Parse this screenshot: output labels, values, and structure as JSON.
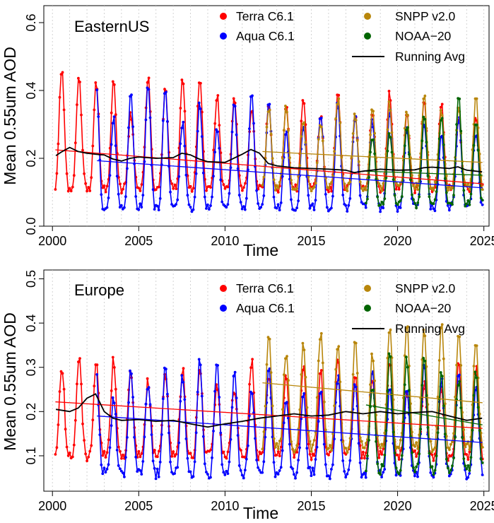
{
  "chart_data": [
    {
      "type": "line",
      "region_label": "EasternUS",
      "xlabel": "Time",
      "ylabel": "Mean 0.55um AOD",
      "xlim": [
        1999.5,
        2025.3
      ],
      "ylim": [
        0.0,
        0.65
      ],
      "xticks": [
        2000,
        2005,
        2010,
        2015,
        2020,
        2025
      ],
      "yticks": [
        0.0,
        0.2,
        0.4,
        0.6
      ],
      "grid": "vertical dotted lines yearly",
      "legend_position": "top-right",
      "legend": [
        {
          "label": "Terra C6.1",
          "color": "#ff0000",
          "marker": "dot"
        },
        {
          "label": "Aqua C6.1",
          "color": "#0000ff",
          "marker": "dot"
        },
        {
          "label": "SNPP v2.0",
          "color": "#b8860b",
          "marker": "dot"
        },
        {
          "label": "NOAA−20",
          "color": "#006400",
          "marker": "dot"
        },
        {
          "label": "Running Avg",
          "color": "#000000",
          "marker": "line"
        }
      ],
      "series": [
        {
          "name": "Terra C6.1",
          "color": "#ff0000",
          "start": 2000.17,
          "end": 2024.92,
          "base": 0.11,
          "amp": 0.3,
          "amp_trend": -0.25
        },
        {
          "name": "Aqua C6.1",
          "color": "#0000ff",
          "start": 2002.58,
          "end": 2024.92,
          "base": 0.055,
          "amp": 0.32,
          "amp_trend": -0.3
        },
        {
          "name": "SNPP v2.0",
          "color": "#b8860b",
          "start": 2012.17,
          "end": 2024.92,
          "base": 0.115,
          "amp": 0.23,
          "amp_trend": 0.0
        },
        {
          "name": "NOAA−20",
          "color": "#006400",
          "start": 2018.17,
          "end": 2024.92,
          "base": 0.065,
          "amp": 0.22,
          "amp_trend": 0.2
        }
      ],
      "trends": [
        {
          "name": "Terra C6.1",
          "color": "#ff0000",
          "x": [
            2000.17,
            2024.92
          ],
          "y": [
            0.225,
            0.125
          ]
        },
        {
          "name": "Aqua C6.1",
          "color": "#0000ff",
          "x": [
            2002.58,
            2024.92
          ],
          "y": [
            0.193,
            0.113
          ]
        },
        {
          "name": "SNPP v2.0",
          "color": "#b8860b",
          "x": [
            2012.17,
            2024.92
          ],
          "y": [
            0.22,
            0.188
          ]
        },
        {
          "name": "NOAA−20",
          "color": "#006400",
          "x": [
            2018.17,
            2024.92
          ],
          "y": [
            0.162,
            0.15
          ]
        }
      ],
      "running_avg": {
        "x": [
          2000.2,
          2000.5,
          2001.0,
          2001.5,
          2002.0,
          2002.5,
          2003.0,
          2003.5,
          2004.0,
          2004.5,
          2005.0,
          2006.0,
          2007.0,
          2007.5,
          2008.0,
          2008.5,
          2009.0,
          2010.0,
          2011.0,
          2011.5,
          2012.0,
          2012.5,
          2013.0,
          2014.0,
          2015.0,
          2016.0,
          2017.0,
          2017.5,
          2018.0,
          2018.5,
          2019.0,
          2020.0,
          2021.0,
          2021.5,
          2022.0,
          2023.0,
          2023.5,
          2024.0,
          2024.9
        ],
        "y": [
          0.208,
          0.218,
          0.232,
          0.22,
          0.215,
          0.212,
          0.21,
          0.198,
          0.192,
          0.2,
          0.204,
          0.2,
          0.202,
          0.215,
          0.21,
          0.198,
          0.19,
          0.188,
          0.212,
          0.226,
          0.215,
          0.185,
          0.178,
          0.172,
          0.17,
          0.168,
          0.165,
          0.158,
          0.162,
          0.165,
          0.168,
          0.165,
          0.166,
          0.172,
          0.174,
          0.17,
          0.175,
          0.165,
          0.16
        ]
      }
    },
    {
      "type": "line",
      "region_label": "Europe",
      "xlabel": "Time",
      "ylabel": "Mean 0.55um AOD",
      "xlim": [
        1999.5,
        2025.3
      ],
      "ylim": [
        0.02,
        0.52
      ],
      "xticks": [
        2000,
        2005,
        2010,
        2015,
        2020,
        2025
      ],
      "yticks": [
        0.1,
        0.2,
        0.3,
        0.4,
        0.5
      ],
      "grid": "vertical dotted lines yearly",
      "legend_position": "top-right",
      "legend": [
        {
          "label": "Terra C6.1",
          "color": "#ff0000",
          "marker": "dot"
        },
        {
          "label": "Aqua C6.1",
          "color": "#0000ff",
          "marker": "dot"
        },
        {
          "label": "SNPP v2.0",
          "color": "#b8860b",
          "marker": "dot"
        },
        {
          "label": "NOAA−20",
          "color": "#006400",
          "marker": "dot"
        },
        {
          "label": "Running Avg",
          "color": "#000000",
          "marker": "line"
        }
      ],
      "series": [
        {
          "name": "Terra C6.1",
          "color": "#ff0000",
          "start": 2000.17,
          "end": 2024.92,
          "base": 0.1,
          "amp": 0.2,
          "amp_trend": -0.1
        },
        {
          "name": "Aqua C6.1",
          "color": "#0000ff",
          "start": 2002.58,
          "end": 2024.92,
          "base": 0.06,
          "amp": 0.22,
          "amp_trend": -0.1
        },
        {
          "name": "SNPP v2.0",
          "color": "#b8860b",
          "start": 2012.17,
          "end": 2024.92,
          "base": 0.12,
          "amp": 0.23,
          "amp_trend": 0.05
        },
        {
          "name": "NOAA−20",
          "color": "#006400",
          "start": 2018.17,
          "end": 2024.92,
          "base": 0.07,
          "amp": 0.2,
          "amp_trend": 0.1
        }
      ],
      "trends": [
        {
          "name": "Terra C6.1",
          "color": "#ff0000",
          "x": [
            2000.17,
            2024.92
          ],
          "y": [
            0.222,
            0.162
          ]
        },
        {
          "name": "Aqua C6.1",
          "color": "#0000ff",
          "x": [
            2002.58,
            2024.92
          ],
          "y": [
            0.19,
            0.13
          ]
        },
        {
          "name": "SNPP v2.0",
          "color": "#b8860b",
          "x": [
            2012.17,
            2024.92
          ],
          "y": [
            0.265,
            0.22
          ]
        },
        {
          "name": "NOAA−20",
          "color": "#006400",
          "x": [
            2018.17,
            2024.92
          ],
          "y": [
            0.215,
            0.17
          ]
        }
      ],
      "running_avg": {
        "x": [
          2000.2,
          2001.0,
          2001.5,
          2002.0,
          2002.5,
          2003.0,
          2003.5,
          2004.0,
          2005.0,
          2006.0,
          2007.0,
          2008.0,
          2009.0,
          2010.0,
          2011.0,
          2012.0,
          2013.0,
          2014.0,
          2015.0,
          2016.0,
          2017.0,
          2018.0,
          2019.0,
          2020.0,
          2021.0,
          2022.0,
          2023.0,
          2024.0,
          2024.9
        ],
        "y": [
          0.205,
          0.2,
          0.208,
          0.23,
          0.24,
          0.2,
          0.185,
          0.18,
          0.182,
          0.178,
          0.18,
          0.172,
          0.165,
          0.172,
          0.178,
          0.185,
          0.19,
          0.195,
          0.19,
          0.192,
          0.2,
          0.195,
          0.2,
          0.195,
          0.198,
          0.2,
          0.19,
          0.18,
          0.185
        ]
      }
    }
  ]
}
